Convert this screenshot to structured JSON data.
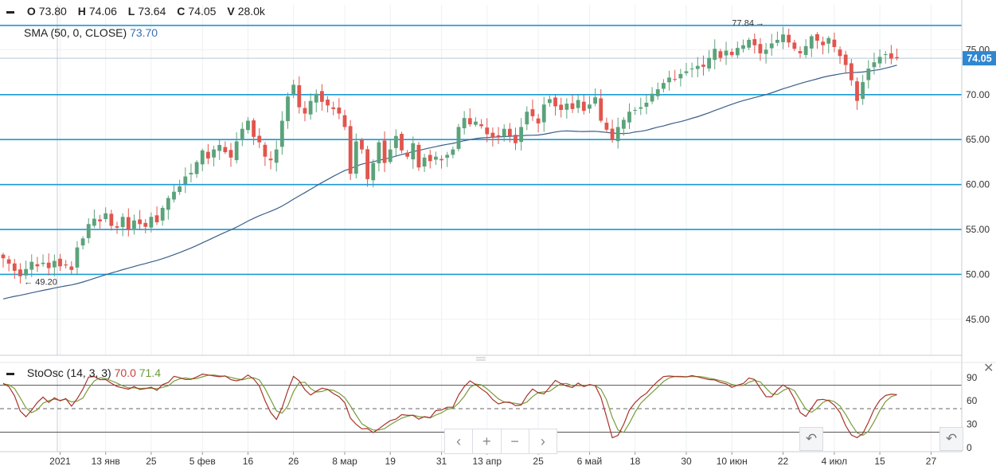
{
  "ohlc_legend": {
    "o_label": "O",
    "o_value": "73.80",
    "h_label": "H",
    "h_value": "74.06",
    "l_label": "L",
    "l_value": "73.64",
    "c_label": "C",
    "c_value": "74.05",
    "v_label": "V",
    "v_value": "28.0k"
  },
  "sma_legend": {
    "label": "SMA (50, 0, CLOSE)",
    "value": "73.70"
  },
  "stoch_legend": {
    "label": "StoOsc (14, 3, 3)",
    "k_value": "70.0",
    "d_value": "71.4"
  },
  "colors": {
    "up": "#5ba37b",
    "down": "#e0564e",
    "sma": "#3a5f8a",
    "hline": "#1a9ad6",
    "stoch_k": "#a8322a",
    "stoch_d": "#7a9c3a",
    "price_tag": "#2f86d1"
  },
  "nav": {
    "prev": "‹",
    "zoom_in": "+",
    "zoom_out": "−",
    "next": "›"
  },
  "icons": {
    "reset": "reset-zoom-icon",
    "close": "close-icon"
  },
  "chart_data": {
    "type": "candlestick",
    "x_tick_labels": [
      "2021",
      "13 янв",
      "25",
      "5 фев",
      "16",
      "26",
      "8 мар",
      "19",
      "31",
      "13 апр",
      "25",
      "6 май",
      "18",
      "30",
      "10 июн",
      "22",
      "4 июл",
      "15",
      "27"
    ],
    "y_tick_labels": [
      "45.00",
      "50.00",
      "55.00",
      "60.00",
      "65.00",
      "70.00",
      "75.00"
    ],
    "ylim": [
      41,
      80
    ],
    "horizontal_levels": [
      50,
      55,
      60,
      65,
      70,
      77.7
    ],
    "last_price": "74.05",
    "annotations": [
      {
        "text": "77.84",
        "x_index": 133,
        "value": 77.84,
        "kind": "high"
      },
      {
        "text": "49.20",
        "x_index": 2,
        "value": 49.2,
        "kind": "low"
      }
    ],
    "close": [
      51.8,
      51.2,
      50.4,
      49.8,
      50.6,
      51.4,
      50.9,
      51.3,
      50.7,
      51.5,
      50.9,
      51.0,
      50.5,
      53.0,
      54.0,
      55.6,
      56.2,
      55.9,
      56.8,
      55.4,
      55.2,
      56.4,
      55.0,
      56.0,
      55.6,
      55.3,
      56.4,
      55.8,
      57.4,
      58.5,
      59.2,
      59.8,
      60.9,
      61.3,
      62.5,
      63.8,
      62.9,
      63.9,
      64.4,
      63.6,
      63.0,
      64.8,
      66.2,
      67.1,
      65.3,
      64.7,
      63.1,
      62.7,
      63.9,
      67.1,
      69.8,
      71.1,
      68.6,
      67.9,
      69.3,
      70.1,
      69.2,
      68.8,
      68.4,
      67.9,
      66.4,
      61.2,
      64.8,
      63.9,
      60.6,
      62.4,
      64.7,
      62.4,
      63.9,
      65.4,
      63.8,
      63.1,
      64.6,
      61.9,
      63.0,
      62.6,
      63.1,
      62.7,
      63.3,
      63.9,
      66.4,
      67.4,
      66.7,
      67.0,
      66.5,
      65.6,
      65.2,
      65.3,
      66.2,
      65.4,
      64.6,
      66.4,
      68.1,
      67.6,
      66.8,
      68.9,
      69.5,
      68.7,
      68.3,
      69.0,
      68.4,
      69.4,
      68.2,
      68.9,
      69.7,
      67.1,
      66.1,
      65.0,
      66.4,
      67.2,
      68.1,
      68.3,
      68.6,
      69.1,
      70.1,
      70.6,
      71.3,
      71.9,
      71.7,
      72.3,
      72.6,
      72.9,
      73.2,
      73.1,
      74.1,
      75.1,
      74.1,
      74.9,
      74.4,
      75.2,
      75.5,
      76.1,
      75.5,
      74.6,
      75.0,
      75.7,
      76.1,
      76.7,
      75.8,
      75.1,
      74.6,
      75.4,
      76.5,
      76.0,
      75.5,
      76.3,
      75.3,
      74.3,
      73.3,
      71.6,
      69.3,
      71.4,
      72.9,
      73.6,
      74.2,
      74.5,
      74.0,
      74.05
    ],
    "series": [
      {
        "name": "SMA (50, 0, CLOSE)",
        "type": "line",
        "value": "73.70"
      },
      {
        "name": "StoOsc (14, 3, 3)",
        "type": "oscillator",
        "k_value": "70.0",
        "d_value": "71.4",
        "ylim": [
          -5,
          100
        ],
        "y_tick_labels": [
          "90",
          "60",
          "30",
          "0"
        ],
        "levels": [
          20,
          80
        ],
        "mid_level": 50
      }
    ]
  }
}
